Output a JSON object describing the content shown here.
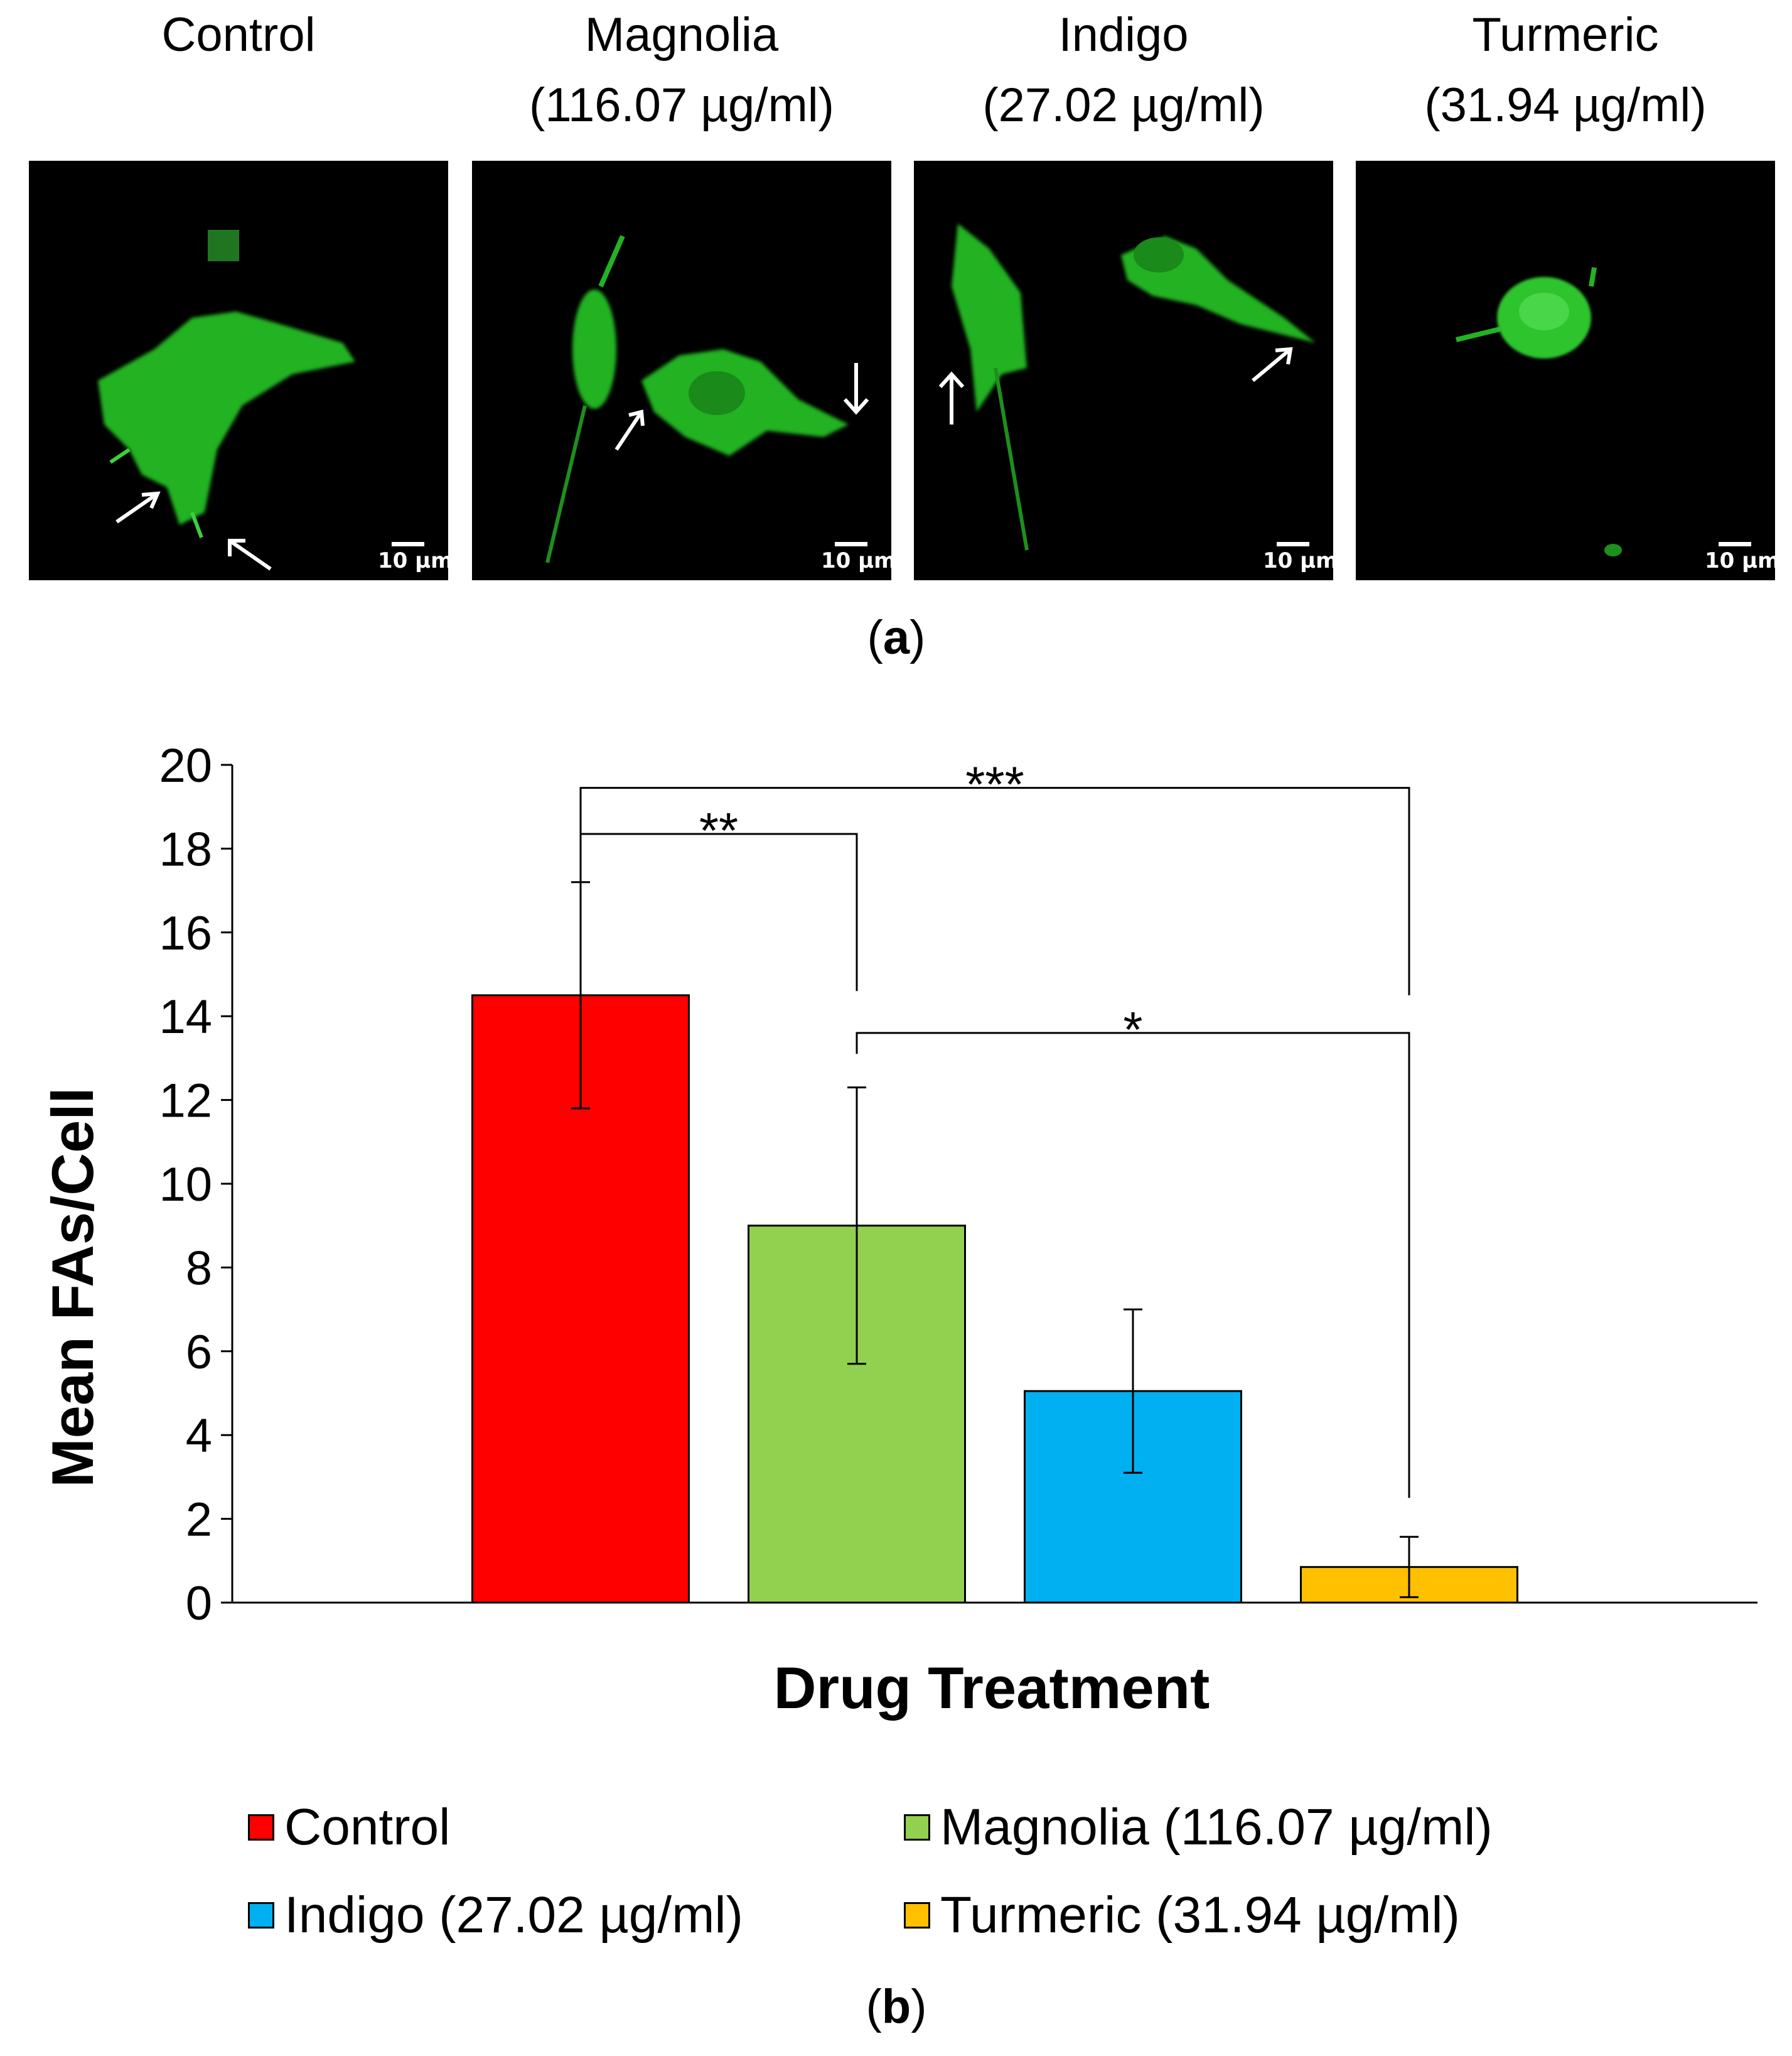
{
  "panel_a": {
    "caption_label": "a",
    "scale_label": "10 µm",
    "panels": [
      {
        "title": "Control"
      },
      {
        "title": "Magnolia\n(116.07 µg/ml)"
      },
      {
        "title": "Indigo\n(27.02 µg/ml)"
      },
      {
        "title": "Turmeric\n(31.94 µg/ml)"
      }
    ]
  },
  "panel_b": {
    "caption_label": "b"
  },
  "chart_data": {
    "type": "bar",
    "categories": [
      "Control",
      "Magnolia (116.07 µg/ml)",
      "Indigo (27.02 µg/ml)",
      "Turmeric (31.94 µg/ml)"
    ],
    "values": [
      14.5,
      9.0,
      5.05,
      0.85
    ],
    "error": [
      2.7,
      3.3,
      1.95,
      0.72
    ],
    "colors": [
      "#ff0000",
      "#92d050",
      "#00b0f0",
      "#ffc000"
    ],
    "xlabel": "Drug Treatment",
    "ylabel": "Mean FAs/Cell",
    "ylim": [
      0,
      20
    ],
    "yticks": [
      0,
      2,
      4,
      6,
      8,
      10,
      12,
      14,
      16,
      18,
      20
    ],
    "grid": false,
    "legend_position": "bottom",
    "significance": [
      {
        "from": 0,
        "to": 1,
        "label": "**"
      },
      {
        "from": 0,
        "to": 3,
        "label": "***"
      },
      {
        "from": 1,
        "to": 3,
        "label": "*"
      }
    ]
  }
}
